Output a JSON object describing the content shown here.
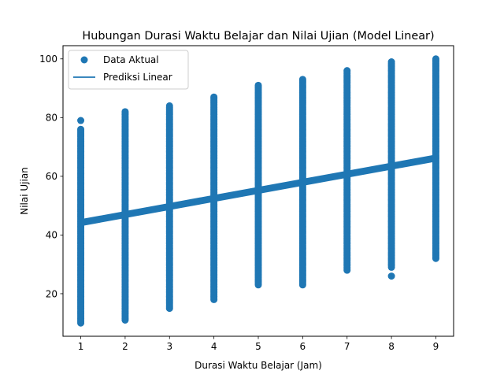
{
  "chart_data": {
    "type": "scatter",
    "title": "Hubungan Durasi Waktu Belajar dan Nilai Ujian (Model Linear)",
    "xlabel": "Durasi Waktu Belajar (Jam)",
    "ylabel": "Nilai Ujian",
    "xlim": [
      0.6,
      9.4
    ],
    "ylim": [
      5.5,
      104.5
    ],
    "xticks": [
      1,
      2,
      3,
      4,
      5,
      6,
      7,
      8,
      9
    ],
    "yticks": [
      20,
      40,
      60,
      80,
      100
    ],
    "grid": false,
    "legend_position": "top-left",
    "series": [
      {
        "name": "Data Aktual",
        "kind": "scatter",
        "color": "#1f77b4",
        "ranges": [
          {
            "x": 1,
            "y_min": 10,
            "y_max": 76,
            "outliers": [
              79
            ]
          },
          {
            "x": 2,
            "y_min": 11,
            "y_max": 82,
            "outliers": []
          },
          {
            "x": 3,
            "y_min": 15,
            "y_max": 84,
            "outliers": []
          },
          {
            "x": 4,
            "y_min": 18,
            "y_max": 87,
            "outliers": []
          },
          {
            "x": 5,
            "y_min": 23,
            "y_max": 91,
            "outliers": []
          },
          {
            "x": 6,
            "y_min": 23,
            "y_max": 93,
            "outliers": []
          },
          {
            "x": 7,
            "y_min": 28,
            "y_max": 96,
            "outliers": []
          },
          {
            "x": 8,
            "y_min": 29,
            "y_max": 99,
            "outliers": [
              26
            ]
          },
          {
            "x": 9,
            "y_min": 32,
            "y_max": 100,
            "outliers": []
          }
        ]
      },
      {
        "name": "Prediksi Linear",
        "kind": "line",
        "color": "#1f77b4",
        "x": [
          1,
          9
        ],
        "y": [
          44.2,
          66.2
        ],
        "band_halfwidth": 1.2
      }
    ]
  }
}
